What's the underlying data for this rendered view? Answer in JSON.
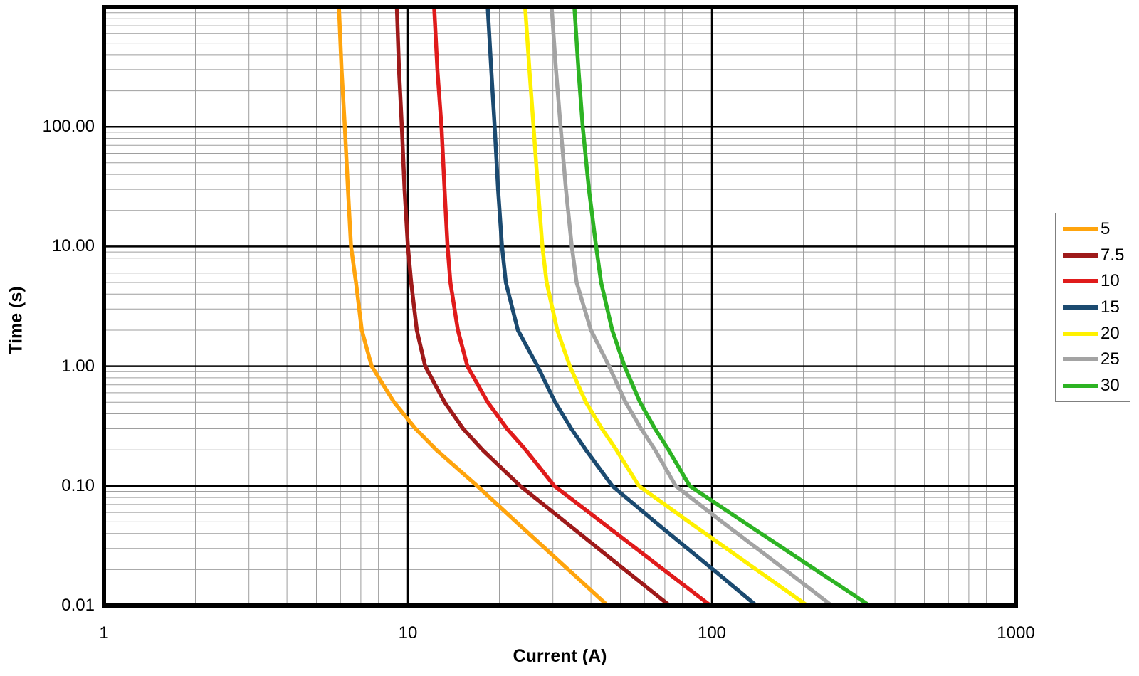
{
  "chart_data": {
    "type": "line",
    "title": "",
    "xlabel": "Current (A)",
    "ylabel": "Time (s)",
    "x_scale": "log",
    "y_scale": "log",
    "xlim": [
      1,
      1000
    ],
    "ylim": [
      0.01,
      1000
    ],
    "grid": "log-major-minor",
    "legend_position": "right-outside",
    "x_ticks": [
      {
        "v": 1,
        "label": "1"
      },
      {
        "v": 10,
        "label": "10"
      },
      {
        "v": 100,
        "label": "100"
      },
      {
        "v": 1000,
        "label": "1000"
      }
    ],
    "y_ticks": [
      {
        "v": 0.01,
        "label": "0.01"
      },
      {
        "v": 0.1,
        "label": "0.10"
      },
      {
        "v": 1,
        "label": "1.00"
      },
      {
        "v": 10,
        "label": "10.00"
      },
      {
        "v": 100,
        "label": "100.00"
      }
    ],
    "x_major_gridlines": [
      10,
      100
    ],
    "y_major_gridlines": [
      0.1,
      1,
      10,
      100
    ],
    "series": [
      {
        "name": "5",
        "color": "#FFA40D",
        "points": [
          [
            5.93,
            1000
          ],
          [
            6.05,
            300
          ],
          [
            6.2,
            100
          ],
          [
            6.35,
            30
          ],
          [
            6.5,
            10
          ],
          [
            6.75,
            5
          ],
          [
            7.05,
            2
          ],
          [
            7.6,
            1
          ],
          [
            9.0,
            0.5
          ],
          [
            10.6,
            0.3
          ],
          [
            12.4,
            0.2
          ],
          [
            16.9,
            0.1
          ],
          [
            22.7,
            0.05
          ],
          [
            33.7,
            0.02
          ],
          [
            45.4,
            0.01
          ]
        ]
      },
      {
        "name": "7.5",
        "color": "#9E1A1A",
        "points": [
          [
            9.2,
            1000
          ],
          [
            9.35,
            300
          ],
          [
            9.55,
            100
          ],
          [
            9.75,
            30
          ],
          [
            10.0,
            10
          ],
          [
            10.25,
            5
          ],
          [
            10.7,
            2
          ],
          [
            11.4,
            1
          ],
          [
            13.2,
            0.5
          ],
          [
            15.2,
            0.3
          ],
          [
            17.6,
            0.2
          ],
          [
            23.4,
            0.1
          ],
          [
            32.9,
            0.05
          ],
          [
            51.6,
            0.02
          ],
          [
            72.6,
            0.01
          ]
        ]
      },
      {
        "name": "10",
        "color": "#E01B1B",
        "points": [
          [
            12.2,
            1000
          ],
          [
            12.5,
            300
          ],
          [
            12.9,
            100
          ],
          [
            13.2,
            30
          ],
          [
            13.5,
            10
          ],
          [
            13.8,
            5
          ],
          [
            14.6,
            2
          ],
          [
            15.7,
            1
          ],
          [
            18.3,
            0.5
          ],
          [
            21.2,
            0.3
          ],
          [
            24.4,
            0.2
          ],
          [
            30.3,
            0.1
          ],
          [
            43.3,
            0.05
          ],
          [
            69.3,
            0.02
          ],
          [
            99,
            0.01
          ]
        ]
      },
      {
        "name": "15",
        "color": "#1B4A70",
        "points": [
          [
            18.3,
            1000
          ],
          [
            18.8,
            300
          ],
          [
            19.3,
            100
          ],
          [
            19.8,
            30
          ],
          [
            20.4,
            10
          ],
          [
            21.0,
            5
          ],
          [
            23.0,
            2
          ],
          [
            26.7,
            1
          ],
          [
            30.5,
            0.5
          ],
          [
            34.5,
            0.3
          ],
          [
            38.5,
            0.2
          ],
          [
            47,
            0.1
          ],
          [
            65,
            0.05
          ],
          [
            101,
            0.02
          ],
          [
            140,
            0.01
          ]
        ]
      },
      {
        "name": "20",
        "color": "#FFF100",
        "points": [
          [
            24.3,
            1000
          ],
          [
            25.1,
            300
          ],
          [
            25.9,
            100
          ],
          [
            26.8,
            30
          ],
          [
            27.7,
            10
          ],
          [
            28.6,
            5
          ],
          [
            31,
            2
          ],
          [
            34.1,
            1
          ],
          [
            38.5,
            0.5
          ],
          [
            43.5,
            0.3
          ],
          [
            48.5,
            0.2
          ],
          [
            57.5,
            0.1
          ],
          [
            84,
            0.05
          ],
          [
            140,
            0.02
          ],
          [
            206,
            0.01
          ]
        ]
      },
      {
        "name": "25",
        "color": "#A3A3A3",
        "points": [
          [
            29.7,
            1000
          ],
          [
            30.7,
            300
          ],
          [
            31.8,
            100
          ],
          [
            33.1,
            30
          ],
          [
            34.6,
            10
          ],
          [
            35.9,
            5
          ],
          [
            40,
            2
          ],
          [
            45.9,
            1
          ],
          [
            52,
            0.5
          ],
          [
            58.5,
            0.3
          ],
          [
            65,
            0.2
          ],
          [
            76,
            0.1
          ],
          [
            108,
            0.05
          ],
          [
            174,
            0.02
          ],
          [
            248,
            0.01
          ]
        ]
      },
      {
        "name": "30",
        "color": "#2DB323",
        "points": [
          [
            35.3,
            1000
          ],
          [
            36.4,
            300
          ],
          [
            37.6,
            100
          ],
          [
            39.4,
            30
          ],
          [
            41.6,
            10
          ],
          [
            43.2,
            5
          ],
          [
            47,
            2
          ],
          [
            51.6,
            1
          ],
          [
            58,
            0.5
          ],
          [
            65,
            0.3
          ],
          [
            72,
            0.2
          ],
          [
            84.5,
            0.1
          ],
          [
            127,
            0.05
          ],
          [
            219,
            0.02
          ],
          [
            330,
            0.01
          ]
        ]
      }
    ],
    "style": {
      "minor_grid_color": "#9e9e9e",
      "major_grid_color": "#000000",
      "border_color": "#000000",
      "curve_width": 5.5
    }
  }
}
